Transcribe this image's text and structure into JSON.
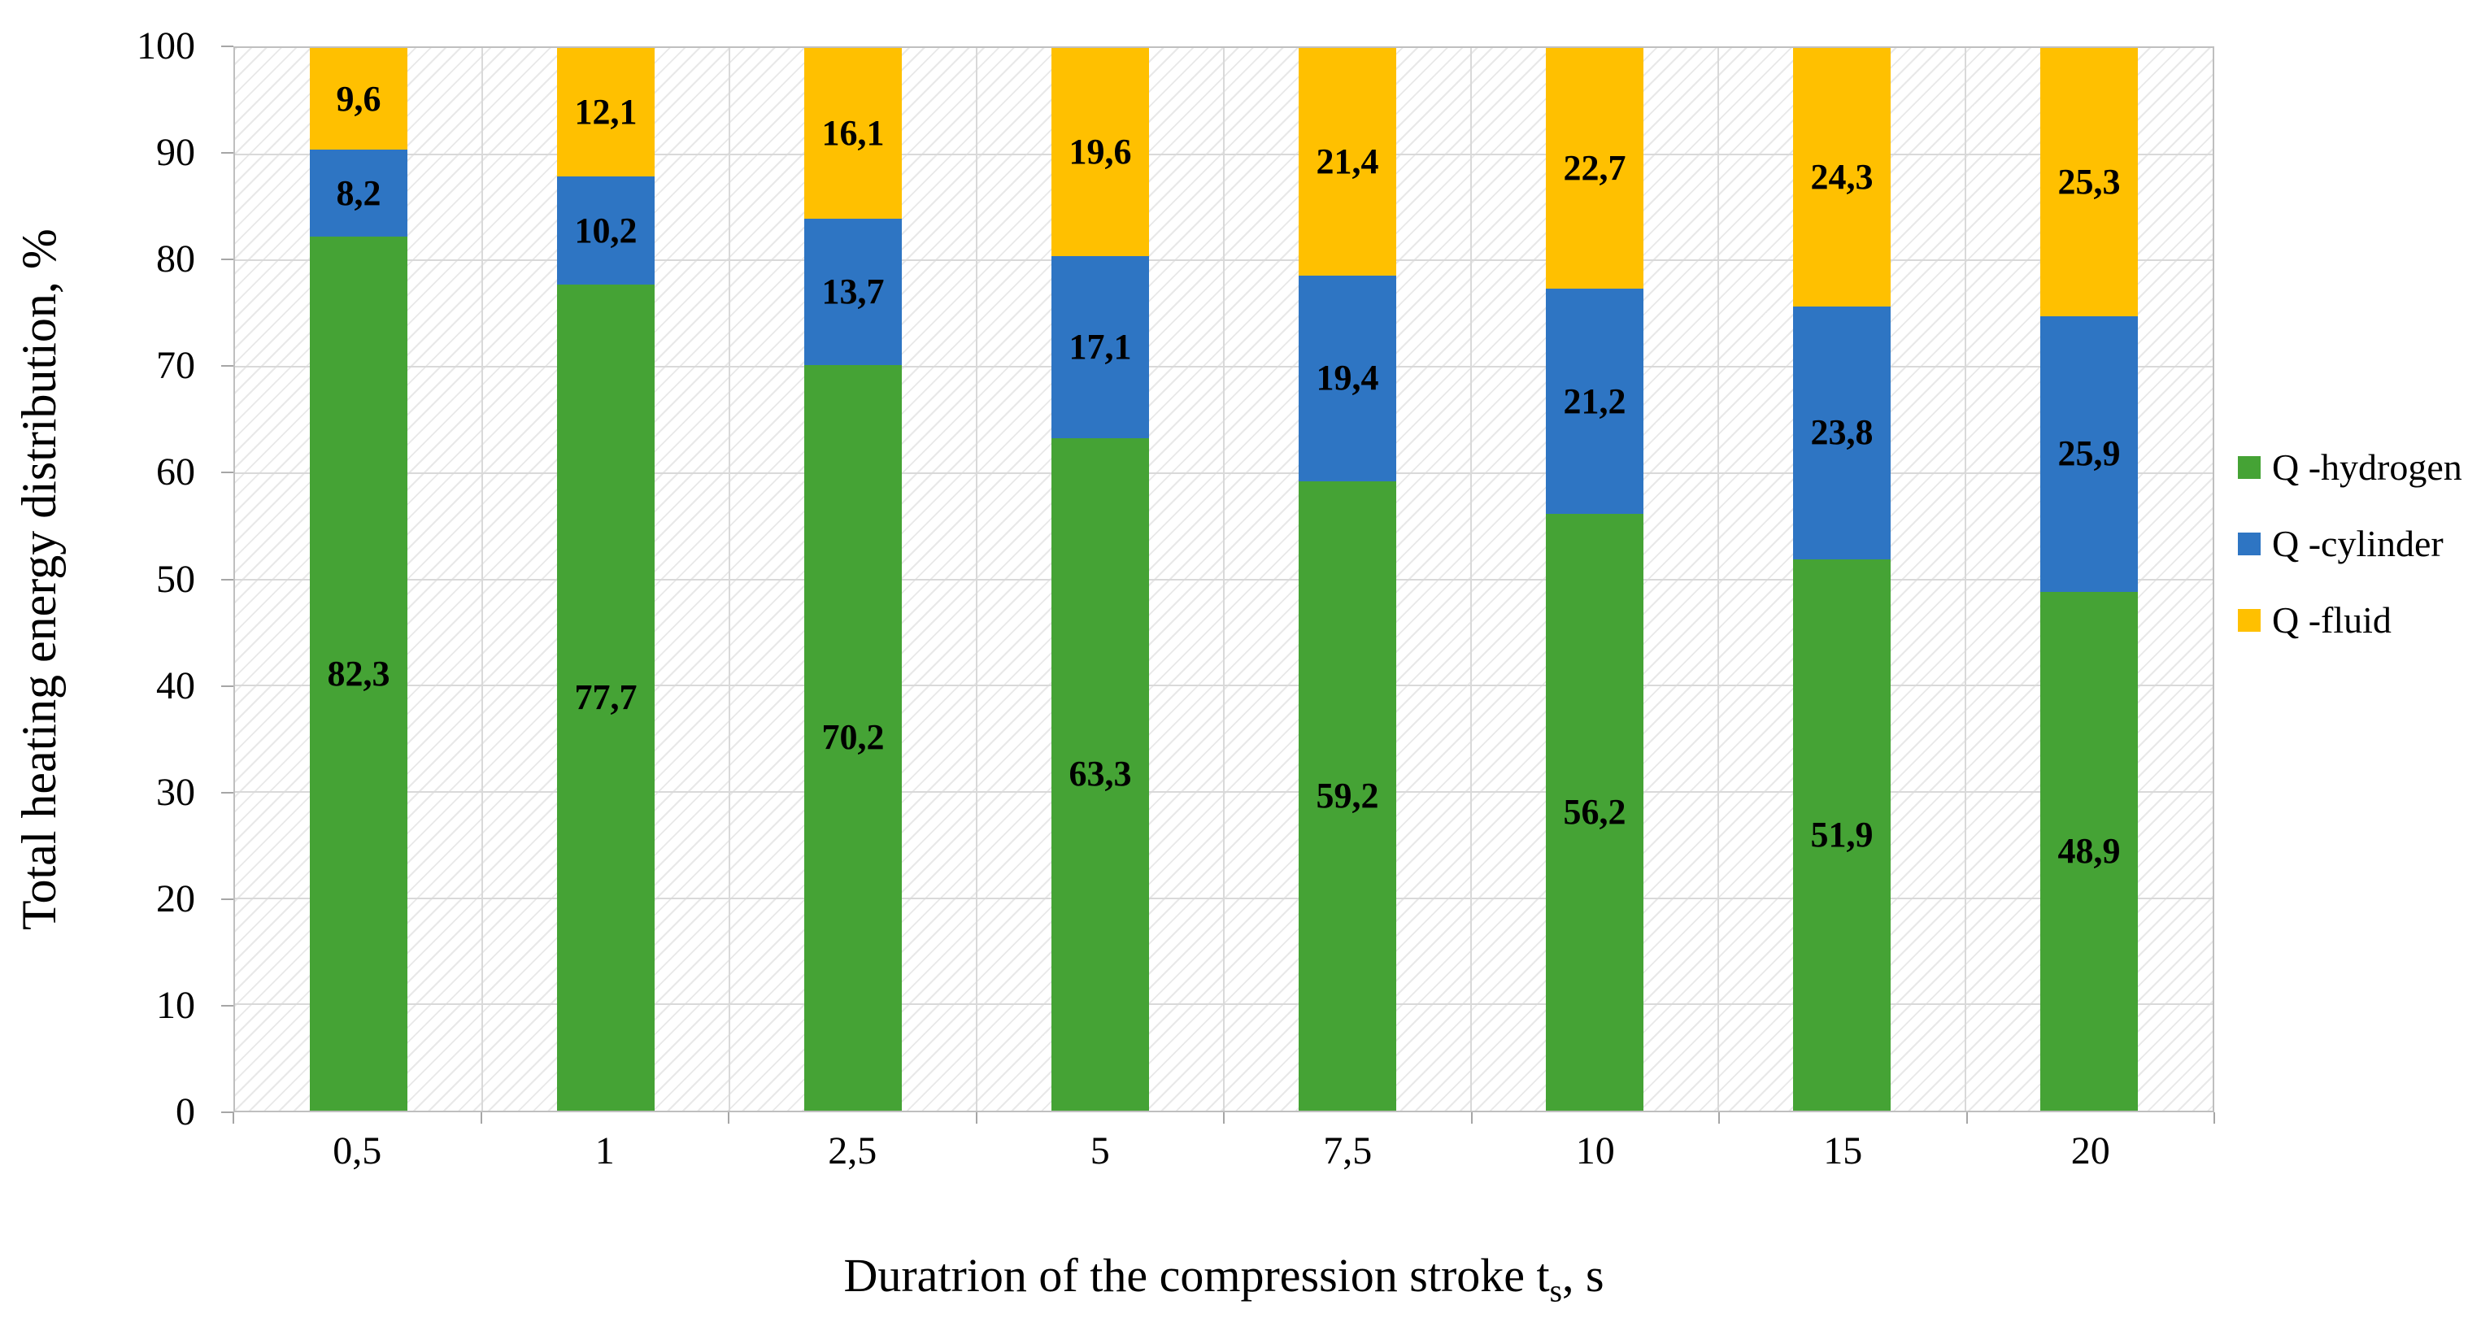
{
  "chart_data": {
    "type": "bar",
    "stacked": true,
    "categories": [
      "0,5",
      "1",
      "2,5",
      "5",
      "7,5",
      "10",
      "15",
      "20"
    ],
    "series": [
      {
        "name": "Q -hydrogen",
        "color": "#45a335",
        "values": [
          82.3,
          77.7,
          70.2,
          63.3,
          59.2,
          56.2,
          51.9,
          48.9
        ],
        "labels": [
          "82,3",
          "77,7",
          "70,2",
          "63,3",
          "59,2",
          "56,2",
          "51,9",
          "48,9"
        ]
      },
      {
        "name": "Q -cylinder",
        "color": "#2e75c3",
        "values": [
          8.2,
          10.2,
          13.7,
          17.1,
          19.4,
          21.2,
          23.8,
          25.9
        ],
        "labels": [
          "8,2",
          "10,2",
          "13,7",
          "17,1",
          "19,4",
          "21,2",
          "23,8",
          "25,9"
        ]
      },
      {
        "name": "Q -fluid",
        "color": "#ffc000",
        "values": [
          9.6,
          12.1,
          16.1,
          19.6,
          21.4,
          22.7,
          24.3,
          25.3
        ],
        "labels": [
          "9,6",
          "12,1",
          "16,1",
          "19,6",
          "21,4",
          "22,7",
          "24,3",
          "25,3"
        ]
      }
    ],
    "title": "",
    "xlabel": "Duratrion of the compression stroke ts, s",
    "ylabel": "Total heating energy distribution, %",
    "ylim": [
      0,
      100
    ],
    "ytick_step": 10,
    "grid": true,
    "legend_position": "right",
    "grid_color": "#d9d9d9",
    "plot_border_color": "#bfbfbf",
    "hatch_background": true
  },
  "axis": {
    "yticks": [
      "0",
      "10",
      "20",
      "30",
      "40",
      "50",
      "60",
      "70",
      "80",
      "90",
      "100"
    ]
  },
  "xlabel_parts": {
    "main": "Duratrion of the compression stroke t",
    "sub": "s",
    "tail": ", s"
  }
}
